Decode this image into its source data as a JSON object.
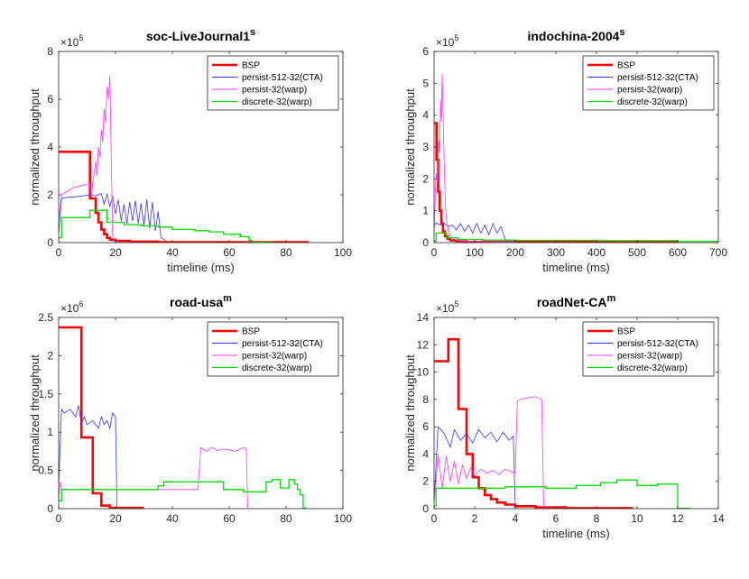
{
  "chart_data": [
    {
      "type": "line",
      "title": "soc-LiveJournal1",
      "title_sup": "s",
      "xlabel": "timeline (ms)",
      "ylabel": "normalized throughput",
      "exponent_base": "×10",
      "exponent_power": "5",
      "xlim": [
        0,
        100
      ],
      "ylim": [
        0,
        8
      ],
      "xticks": [
        0,
        20,
        40,
        60,
        80,
        100
      ],
      "yticks": [
        0,
        2,
        4,
        6,
        8
      ],
      "legend": {
        "position": "top-right"
      },
      "series": [
        {
          "name": "BSP",
          "color": "#ff0000",
          "width": 2.6,
          "style": "step",
          "x": [
            0,
            11,
            11,
            13,
            13,
            14,
            14,
            15,
            15,
            16,
            16,
            17,
            17,
            18,
            18,
            20,
            20,
            25,
            25,
            35,
            35,
            88
          ],
          "y": [
            3.8,
            3.8,
            1.85,
            1.85,
            1.25,
            1.25,
            0.85,
            0.85,
            0.55,
            0.55,
            0.35,
            0.35,
            0.2,
            0.2,
            0.12,
            0.12,
            0.07,
            0.07,
            0.04,
            0.04,
            0.02,
            0.02
          ]
        },
        {
          "name": "persist-512-32(CTA)",
          "color": "#3333ff",
          "width": 0.8,
          "style": "noisy",
          "x": [
            0,
            1,
            3,
            5,
            8,
            11,
            13,
            15,
            16,
            17,
            18,
            19,
            20,
            21,
            22,
            23,
            24,
            25,
            26,
            27,
            28,
            29,
            30,
            31,
            32,
            33,
            34,
            35,
            36,
            38
          ],
          "y": [
            0.4,
            1.85,
            1.9,
            1.9,
            1.95,
            2.0,
            1.95,
            2.05,
            1.6,
            2.05,
            1.5,
            1.95,
            1.2,
            1.8,
            0.9,
            1.6,
            0.8,
            1.7,
            0.9,
            1.75,
            0.8,
            1.65,
            0.7,
            1.8,
            0.6,
            1.7,
            0.5,
            1.3,
            0.2,
            0.05
          ]
        },
        {
          "name": "persist-32(warp)",
          "color": "#ff33ff",
          "width": 0.8,
          "style": "noisy",
          "x": [
            0,
            1,
            3,
            5,
            7,
            9,
            11,
            11.5,
            12,
            12.5,
            13,
            13.5,
            14,
            14.5,
            15,
            15.5,
            16,
            16.5,
            17,
            17.5,
            18,
            19,
            20,
            22
          ],
          "y": [
            1.0,
            2.0,
            2.15,
            2.3,
            2.35,
            2.4,
            2.5,
            1.9,
            2.5,
            2.9,
            3.4,
            2.8,
            4.0,
            3.6,
            4.7,
            4.2,
            5.6,
            5.0,
            6.5,
            6.0,
            7.0,
            0.3,
            0.05,
            0.02
          ]
        },
        {
          "name": "discrete-32(warp)",
          "color": "#00dd00",
          "width": 1.3,
          "style": "step",
          "x": [
            0,
            1,
            1,
            11,
            11,
            17,
            17,
            23,
            23,
            29,
            29,
            35,
            35,
            40,
            40,
            48,
            48,
            53,
            53,
            58,
            58,
            64,
            64,
            67,
            67,
            68,
            68,
            75
          ],
          "y": [
            0.2,
            0.2,
            1.05,
            1.05,
            1.35,
            1.35,
            0.85,
            0.85,
            0.75,
            0.75,
            0.7,
            0.7,
            0.65,
            0.65,
            0.55,
            0.55,
            0.5,
            0.5,
            0.45,
            0.45,
            0.35,
            0.35,
            0.25,
            0.25,
            0.1,
            0.1,
            0.02,
            0.02
          ]
        }
      ]
    },
    {
      "type": "line",
      "title": "indochina-2004",
      "title_sup": "s",
      "xlabel": "timeline (ms)",
      "ylabel": "normalized throughput",
      "exponent_base": "×10",
      "exponent_power": "5",
      "xlim": [
        0,
        700
      ],
      "ylim": [
        0,
        6
      ],
      "xticks": [
        0,
        100,
        200,
        300,
        400,
        500,
        600,
        700
      ],
      "yticks": [
        0,
        1,
        2,
        3,
        4,
        5,
        6
      ],
      "legend": {
        "position": "top-right"
      },
      "series": [
        {
          "name": "BSP",
          "color": "#ff0000",
          "width": 2.6,
          "style": "step",
          "x": [
            0,
            6,
            6,
            10,
            10,
            14,
            14,
            18,
            18,
            22,
            22,
            27,
            27,
            33,
            33,
            40,
            40,
            55,
            55,
            80,
            80,
            600
          ],
          "y": [
            3.75,
            3.75,
            2.6,
            2.6,
            1.6,
            1.6,
            1.0,
            1.0,
            0.6,
            0.6,
            0.35,
            0.35,
            0.2,
            0.2,
            0.12,
            0.12,
            0.07,
            0.07,
            0.04,
            0.04,
            0.02,
            0.02
          ]
        },
        {
          "name": "persist-512-32(CTA)",
          "color": "#3333ff",
          "width": 0.8,
          "style": "noisy",
          "x": [
            0,
            5,
            15,
            25,
            35,
            45,
            55,
            65,
            75,
            85,
            95,
            105,
            115,
            125,
            135,
            145,
            155,
            165,
            175,
            185,
            200
          ],
          "y": [
            0.5,
            0.62,
            0.55,
            0.6,
            0.5,
            0.55,
            0.4,
            0.6,
            0.35,
            0.55,
            0.3,
            0.6,
            0.3,
            0.55,
            0.25,
            0.6,
            0.3,
            0.5,
            0.1,
            0.04,
            0.02
          ]
        },
        {
          "name": "persist-32(warp)",
          "color": "#ff33ff",
          "width": 0.8,
          "style": "noisy",
          "x": [
            0,
            5,
            8,
            10,
            12,
            14,
            16,
            18,
            20,
            22,
            24,
            26,
            28,
            30,
            35,
            40,
            50,
            70,
            100,
            200
          ],
          "y": [
            0.3,
            2.2,
            1.9,
            2.6,
            3.2,
            2.8,
            4.5,
            3.8,
            5.3,
            4.2,
            3.0,
            2.0,
            1.2,
            0.8,
            0.4,
            0.2,
            0.1,
            0.05,
            0.03,
            0.02
          ]
        },
        {
          "name": "discrete-32(warp)",
          "color": "#00dd00",
          "width": 1.3,
          "style": "step",
          "x": [
            0,
            5,
            5,
            30,
            30,
            60,
            60,
            120,
            120,
            200,
            200,
            400,
            400,
            600,
            600,
            700
          ],
          "y": [
            0.05,
            0.05,
            0.3,
            0.3,
            0.15,
            0.15,
            0.1,
            0.1,
            0.08,
            0.08,
            0.07,
            0.07,
            0.06,
            0.06,
            0.04,
            0.04
          ]
        }
      ]
    },
    {
      "type": "line",
      "title": "road-usa",
      "title_sup": "m",
      "xlabel": "",
      "ylabel": "normalized throughput",
      "exponent_base": "×10",
      "exponent_power": "6",
      "xlim": [
        0,
        100
      ],
      "ylim": [
        0,
        2.5
      ],
      "xticks": [
        0,
        20,
        40,
        60,
        80,
        100
      ],
      "yticks": [
        0,
        0.5,
        1,
        1.5,
        2,
        2.5
      ],
      "legend": {
        "position": "top-right"
      },
      "series": [
        {
          "name": "BSP",
          "color": "#ff0000",
          "width": 2.6,
          "style": "step",
          "x": [
            0,
            8,
            8,
            12,
            12,
            15,
            15,
            18,
            18,
            30
          ],
          "y": [
            2.37,
            2.37,
            0.93,
            0.93,
            0.2,
            0.2,
            0.04,
            0.04,
            0.01,
            0.01
          ]
        },
        {
          "name": "persist-512-32(CTA)",
          "color": "#3333ff",
          "width": 0.8,
          "style": "noisy",
          "x": [
            0,
            1,
            2,
            4,
            6,
            7,
            8,
            9,
            10,
            12,
            14,
            15,
            16,
            17,
            18,
            19,
            20,
            20.5
          ],
          "y": [
            0.3,
            1.3,
            1.25,
            1.3,
            1.2,
            1.35,
            1.1,
            1.2,
            1.1,
            1.15,
            1.05,
            1.2,
            1.1,
            1.15,
            1.05,
            1.25,
            1.2,
            0.02
          ]
        },
        {
          "name": "persist-32(warp)",
          "color": "#ff33ff",
          "width": 0.8,
          "style": "noisy",
          "x": [
            0,
            0.5,
            1,
            2,
            5,
            10,
            20,
            30,
            40,
            49,
            50,
            52,
            54,
            56,
            58,
            60,
            62,
            64,
            65,
            66,
            66.5
          ],
          "y": [
            0.1,
            0.35,
            0.25,
            0.26,
            0.25,
            0.25,
            0.25,
            0.25,
            0.25,
            0.25,
            0.8,
            0.75,
            0.8,
            0.76,
            0.78,
            0.77,
            0.75,
            0.78,
            0.8,
            0.78,
            0.01
          ]
        },
        {
          "name": "discrete-32(warp)",
          "color": "#00dd00",
          "width": 1.3,
          "style": "step",
          "x": [
            0,
            1,
            1,
            35,
            35,
            37,
            37,
            58,
            58,
            65,
            65,
            73,
            73,
            75,
            75,
            78,
            78,
            81,
            81,
            83,
            83,
            84,
            84,
            85,
            85,
            86,
            86,
            87
          ],
          "y": [
            0.1,
            0.1,
            0.25,
            0.25,
            0.3,
            0.3,
            0.35,
            0.35,
            0.25,
            0.25,
            0.22,
            0.22,
            0.35,
            0.35,
            0.38,
            0.38,
            0.27,
            0.27,
            0.38,
            0.38,
            0.32,
            0.32,
            0.25,
            0.25,
            0.18,
            0.18,
            0.01,
            0.01
          ]
        }
      ]
    },
    {
      "type": "line",
      "title": "roadNet-CA",
      "title_sup": "m",
      "xlabel": "timeline (ms)",
      "ylabel": "normalized throughput",
      "exponent_base": "×10",
      "exponent_power": "5",
      "xlim": [
        0,
        14
      ],
      "ylim": [
        0,
        14
      ],
      "xticks": [
        0,
        2,
        4,
        6,
        8,
        10,
        12,
        14
      ],
      "yticks": [
        0,
        2,
        4,
        6,
        8,
        10,
        12,
        14
      ],
      "legend": {
        "position": "top-right"
      },
      "series": [
        {
          "name": "BSP",
          "color": "#ff0000",
          "width": 2.6,
          "style": "step",
          "x": [
            0,
            0.7,
            0.7,
            1.2,
            1.2,
            1.6,
            1.6,
            1.9,
            1.9,
            2.2,
            2.2,
            2.5,
            2.5,
            2.8,
            2.8,
            3.1,
            3.1,
            3.5,
            3.5,
            4.0,
            4.0,
            5.0,
            5.0,
            6.5,
            6.5,
            9.8
          ],
          "y": [
            10.8,
            10.8,
            12.4,
            12.4,
            7.3,
            7.3,
            4.0,
            4.0,
            2.3,
            2.3,
            1.5,
            1.5,
            1.0,
            1.0,
            0.7,
            0.7,
            0.45,
            0.45,
            0.3,
            0.3,
            0.18,
            0.18,
            0.1,
            0.1,
            0.04,
            0.04
          ]
        },
        {
          "name": "persist-512-32(CTA)",
          "color": "#3333ff",
          "width": 0.8,
          "style": "noisy",
          "x": [
            0,
            0.2,
            0.5,
            0.8,
            1.0,
            1.3,
            1.6,
            1.9,
            2.2,
            2.5,
            2.8,
            3.1,
            3.4,
            3.7,
            3.9,
            4.0
          ],
          "y": [
            0.5,
            6.0,
            5.5,
            4.5,
            5.8,
            5.0,
            5.5,
            4.8,
            5.8,
            5.2,
            5.6,
            4.9,
            5.6,
            5.0,
            5.3,
            0.1
          ]
        },
        {
          "name": "persist-32(warp)",
          "color": "#ff33ff",
          "width": 0.8,
          "style": "noisy",
          "x": [
            0,
            0.2,
            0.4,
            0.6,
            0.8,
            1.0,
            1.2,
            1.4,
            1.6,
            1.8,
            2.0,
            2.3,
            2.6,
            2.9,
            3.2,
            3.5,
            3.8,
            4.0,
            4.1,
            4.5,
            5.0,
            5.3,
            5.4
          ],
          "y": [
            0.5,
            4.0,
            1.5,
            3.8,
            2.0,
            3.5,
            1.8,
            3.2,
            2.2,
            3.0,
            2.4,
            2.9,
            2.6,
            2.8,
            2.5,
            2.9,
            2.7,
            2.6,
            7.9,
            8.1,
            8.2,
            8.0,
            0.1
          ]
        },
        {
          "name": "discrete-32(warp)",
          "color": "#00dd00",
          "width": 1.3,
          "style": "step",
          "x": [
            0,
            0.1,
            0.1,
            3.5,
            3.5,
            5.5,
            5.5,
            7.0,
            7.0,
            8.2,
            8.2,
            9.0,
            9.0,
            10.0,
            10.0,
            11.0,
            11.0,
            12.0,
            12.0,
            12.6
          ],
          "y": [
            0.2,
            0.2,
            1.5,
            1.5,
            1.6,
            1.6,
            1.5,
            1.5,
            1.7,
            1.7,
            1.9,
            1.9,
            2.1,
            2.1,
            1.7,
            1.7,
            1.8,
            1.8,
            0.02,
            0.02
          ]
        }
      ]
    }
  ]
}
